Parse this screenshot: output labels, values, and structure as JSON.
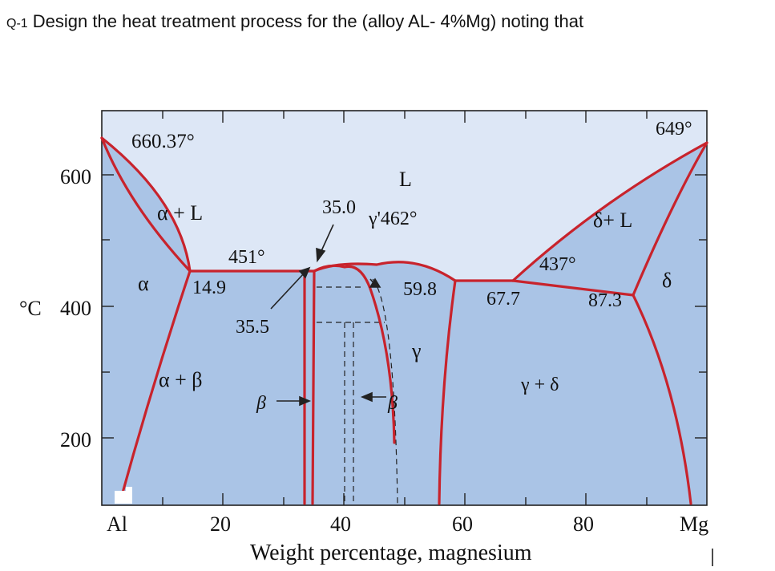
{
  "question": {
    "number": "Q-1",
    "text": "Design the heat treatment process for the (alloy AL- 4%Mg) noting that"
  },
  "diagram": {
    "x_axis": {
      "title": "Weight percentage, magnesium",
      "ticks": [
        "20",
        "40",
        "60",
        "80"
      ],
      "left_end": "Al",
      "right_end": "Mg"
    },
    "y_axis": {
      "unit": "°C",
      "ticks": [
        "600",
        "400",
        "200"
      ]
    },
    "phase_labels": {
      "liquid": "L",
      "alpha": "α",
      "alpha_liquid": "α + L",
      "alpha_beta": "α + β",
      "gamma": "γ",
      "gamma_delta": "γ + δ",
      "delta": "δ",
      "delta_liquid": "δ+ L",
      "beta_left": "β",
      "beta_right": "β"
    },
    "annotations": {
      "al_melting": "660.37°",
      "mg_melting": "649°",
      "eutectic_left_temp": "451°",
      "eutectic_right_temp": "437°",
      "alpha_solvus": "14.9",
      "beta_left_comp": "35.5",
      "eutectic_left_comp": "35.0",
      "gamma_max": "γ'462°",
      "gamma_comp": "59.8",
      "eutectic_right_comp": "67.7",
      "delta_solvus": "87.3"
    },
    "colors": {
      "liquid_region": "#dde7f6",
      "solid_region": "#aac4e6",
      "phase_line": "#c8232c"
    }
  }
}
